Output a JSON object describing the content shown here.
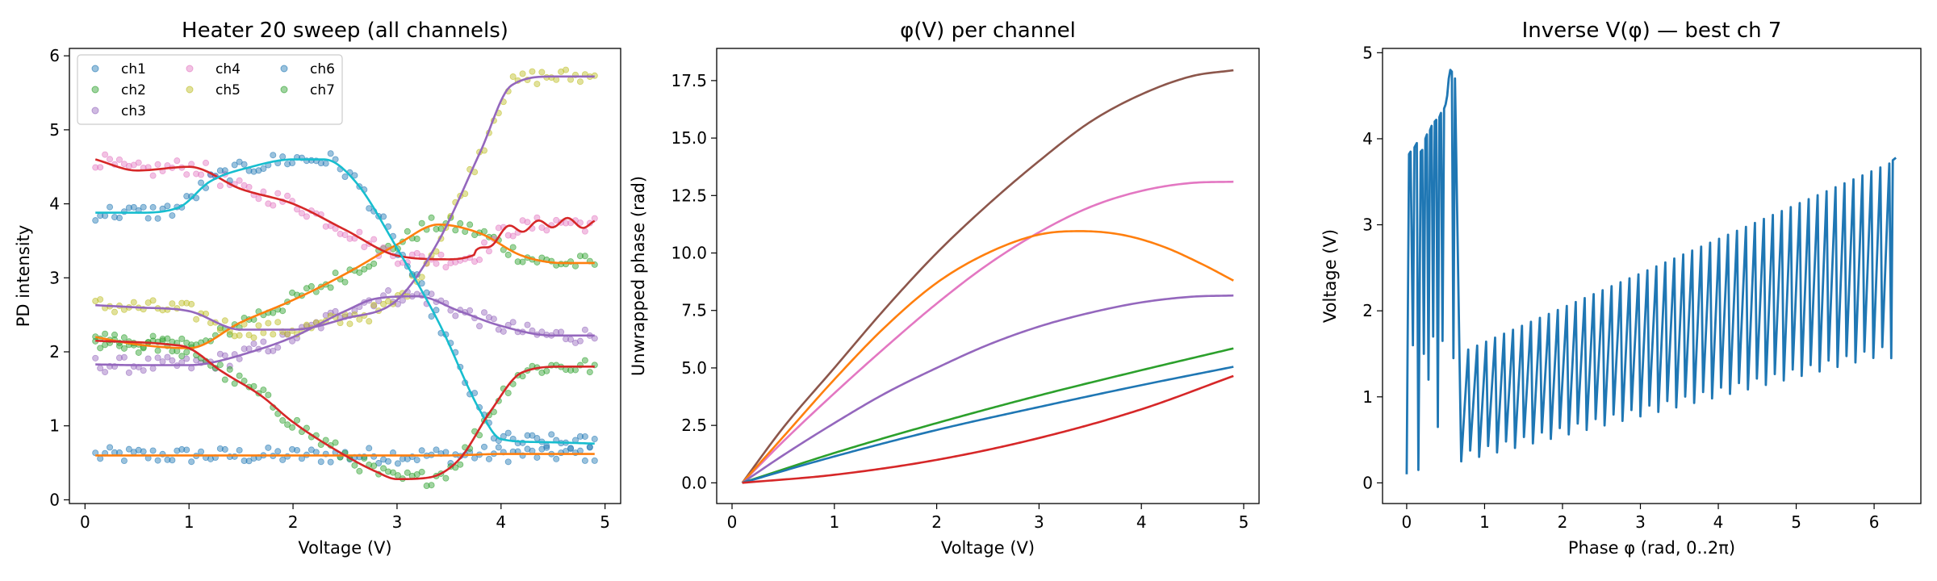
{
  "figure": {
    "background": "#ffffff"
  },
  "colors": {
    "ch1": "#1f77b4",
    "ch2": "#ff7f0e",
    "ch3": "#2ca02c",
    "ch4": "#d62728",
    "ch5": "#9467bd",
    "ch6": "#8c564b",
    "ch7": "#e377c2",
    "scatter_ch1": "#1f77b4",
    "scatter_ch2": "#2ca02c",
    "scatter_ch3": "#9467bd",
    "scatter_ch4": "#e377c2",
    "scatter_ch5": "#bcbd22",
    "scatter_ch6": "#1f77b4",
    "scatter_ch7": "#2ca02c",
    "fit_teal": "#17becf"
  },
  "chart_data": [
    {
      "type": "scatter",
      "title": "Heater 20 sweep (all channels)",
      "xlabel": "Voltage (V)",
      "ylabel": "PD intensity",
      "xlim": [
        -0.15,
        5.15
      ],
      "ylim": [
        -0.05,
        6.1
      ],
      "xticks": [
        0,
        1,
        2,
        3,
        4,
        5
      ],
      "yticks": [
        0,
        1,
        2,
        3,
        4,
        5,
        6
      ],
      "legend": {
        "placement": "top-left",
        "columns": 3,
        "entries": [
          "ch1",
          "ch2",
          "ch3",
          "ch4",
          "ch5",
          "ch6",
          "ch7"
        ]
      },
      "x_range": [
        0.1,
        4.9
      ],
      "series": [
        {
          "name": "ch1",
          "x": [
            0.1,
            0.5,
            1.0,
            1.5,
            2.0,
            2.5,
            3.0,
            3.5,
            4.0,
            4.5,
            4.9
          ],
          "y": [
            0.6,
            0.6,
            0.6,
            0.6,
            0.6,
            0.6,
            0.6,
            0.6,
            0.62,
            0.62,
            0.62
          ]
        },
        {
          "name": "ch2",
          "x": [
            0.1,
            0.5,
            1.0,
            1.5,
            2.0,
            2.5,
            3.0,
            3.4,
            3.8,
            4.2,
            4.6,
            4.9
          ],
          "y": [
            2.2,
            2.1,
            2.05,
            2.4,
            2.7,
            3.05,
            3.45,
            3.72,
            3.6,
            3.3,
            3.2,
            3.2
          ]
        },
        {
          "name": "ch3",
          "x": [
            0.1,
            0.5,
            1.0,
            1.2,
            1.6,
            2.0,
            2.5,
            2.8,
            3.2,
            3.6,
            4.0,
            4.5,
            4.9
          ],
          "y": [
            1.83,
            1.82,
            1.82,
            1.85,
            2.0,
            2.2,
            2.55,
            2.72,
            2.75,
            2.55,
            2.35,
            2.22,
            2.22
          ]
        },
        {
          "name": "ch4",
          "x": [
            0.1,
            0.5,
            1.0,
            1.5,
            2.0,
            2.5,
            3.0,
            3.5,
            3.8,
            4.0,
            4.3,
            4.6,
            4.9
          ],
          "y": [
            4.6,
            4.45,
            4.5,
            4.2,
            4.0,
            3.65,
            3.3,
            3.25,
            3.35,
            3.6,
            3.7,
            3.75,
            3.72
          ]
        },
        {
          "name": "ch5",
          "x": [
            0.1,
            0.5,
            1.0,
            1.5,
            2.0,
            2.5,
            3.0,
            3.4,
            3.8,
            4.1,
            4.5,
            4.9
          ],
          "y": [
            2.63,
            2.6,
            2.55,
            2.3,
            2.3,
            2.45,
            2.7,
            3.5,
            4.7,
            5.6,
            5.72,
            5.72
          ]
        },
        {
          "name": "ch6",
          "x": [
            0.1,
            0.5,
            0.9,
            1.2,
            1.6,
            2.0,
            2.3,
            2.6,
            3.0,
            3.4,
            3.8,
            4.0,
            4.4,
            4.9
          ],
          "y": [
            3.88,
            3.88,
            3.95,
            4.3,
            4.5,
            4.6,
            4.6,
            4.3,
            3.4,
            2.4,
            1.2,
            0.82,
            0.78,
            0.76
          ]
        },
        {
          "name": "ch7",
          "x": [
            0.1,
            0.8,
            1.0,
            1.3,
            1.7,
            2.0,
            2.5,
            2.8,
            3.0,
            3.3,
            3.6,
            3.9,
            4.2,
            4.6,
            4.9
          ],
          "y": [
            2.15,
            2.1,
            2.05,
            1.75,
            1.4,
            1.05,
            0.6,
            0.38,
            0.28,
            0.3,
            0.55,
            1.2,
            1.72,
            1.8,
            1.8
          ]
        }
      ]
    },
    {
      "type": "line",
      "title": "φ(V) per channel",
      "xlabel": "Voltage (V)",
      "ylabel": "Unwrapped phase (rad)",
      "xlim": [
        -0.15,
        5.15
      ],
      "ylim": [
        -0.9,
        18.9
      ],
      "xticks": [
        0,
        1,
        2,
        3,
        4,
        5
      ],
      "yticks": [
        0.0,
        2.5,
        5.0,
        7.5,
        10.0,
        12.5,
        15.0,
        17.5
      ],
      "ytick_labels": [
        "0.0",
        "2.5",
        "5.0",
        "7.5",
        "10.0",
        "12.5",
        "15.0",
        "17.5"
      ],
      "series": [
        {
          "color": "#8c564b",
          "x": [
            0.1,
            0.5,
            1.0,
            1.5,
            2.0,
            2.5,
            3.0,
            3.5,
            4.0,
            4.5,
            4.9
          ],
          "y": [
            0,
            2.4,
            5.0,
            7.6,
            10.0,
            12.1,
            14.0,
            15.7,
            16.9,
            17.7,
            17.95
          ]
        },
        {
          "color": "#e377c2",
          "x": [
            0.1,
            0.5,
            1.0,
            1.5,
            2.0,
            2.5,
            3.0,
            3.5,
            4.0,
            4.5,
            4.9
          ],
          "y": [
            0,
            1.8,
            3.9,
            5.9,
            7.8,
            9.5,
            10.9,
            12.0,
            12.7,
            13.05,
            13.1
          ]
        },
        {
          "color": "#ff7f0e",
          "x": [
            0.1,
            0.5,
            1.0,
            1.5,
            2.0,
            2.5,
            3.0,
            3.4,
            3.8,
            4.2,
            4.6,
            4.9
          ],
          "y": [
            0,
            2.0,
            4.5,
            6.8,
            8.7,
            10.0,
            10.8,
            10.95,
            10.8,
            10.3,
            9.5,
            8.8
          ]
        },
        {
          "color": "#9467bd",
          "x": [
            0.1,
            0.5,
            1.0,
            1.5,
            2.0,
            2.5,
            3.0,
            3.5,
            4.0,
            4.5,
            4.9
          ],
          "y": [
            0,
            1.2,
            2.6,
            3.9,
            5.0,
            6.0,
            6.8,
            7.4,
            7.85,
            8.1,
            8.15
          ]
        },
        {
          "color": "#2ca02c",
          "x": [
            0.1,
            1.0,
            2.0,
            3.0,
            4.0,
            4.9
          ],
          "y": [
            0,
            1.3,
            2.6,
            3.8,
            4.9,
            5.85
          ]
        },
        {
          "color": "#1f77b4",
          "x": [
            0.1,
            1.0,
            2.0,
            3.0,
            4.0,
            4.9
          ],
          "y": [
            0,
            1.15,
            2.3,
            3.3,
            4.25,
            5.05
          ]
        },
        {
          "color": "#d62728",
          "x": [
            0.1,
            1.0,
            2.0,
            3.0,
            4.0,
            4.9
          ],
          "y": [
            0,
            0.35,
            1.0,
            1.95,
            3.2,
            4.65
          ]
        }
      ]
    },
    {
      "type": "line",
      "title": "Inverse V(φ) — best ch 7",
      "xlabel": "Phase φ (rad, 0..2π)",
      "ylabel": "Voltage (V)",
      "xlim": [
        -0.31,
        6.6
      ],
      "ylim": [
        -0.24,
        5.05
      ],
      "xticks": [
        0,
        1,
        2,
        3,
        4,
        5,
        6
      ],
      "yticks": [
        0,
        1,
        2,
        3,
        4,
        5
      ],
      "series": [
        {
          "name": "ch 7",
          "color": "#1f77b4",
          "x": [
            0.0,
            0.03,
            0.05,
            0.08,
            0.1,
            0.13,
            0.15,
            0.18,
            0.2,
            0.22,
            0.24,
            0.26,
            0.28,
            0.3,
            0.32,
            0.34,
            0.36,
            0.38,
            0.4,
            0.42,
            0.44,
            0.46,
            0.48,
            0.5,
            0.52,
            0.54,
            0.56,
            0.58,
            0.6,
            0.62
          ],
          "y": [
            0.1,
            3.82,
            3.85,
            1.6,
            3.9,
            3.95,
            0.15,
            3.85,
            3.87,
            1.5,
            4.0,
            4.05,
            1.2,
            4.1,
            4.15,
            1.7,
            4.2,
            4.22,
            0.65,
            4.25,
            4.3,
            1.65,
            4.35,
            4.4,
            4.5,
            4.7,
            4.8,
            4.78,
            1.45,
            4.7
          ]
        }
      ]
    }
  ]
}
